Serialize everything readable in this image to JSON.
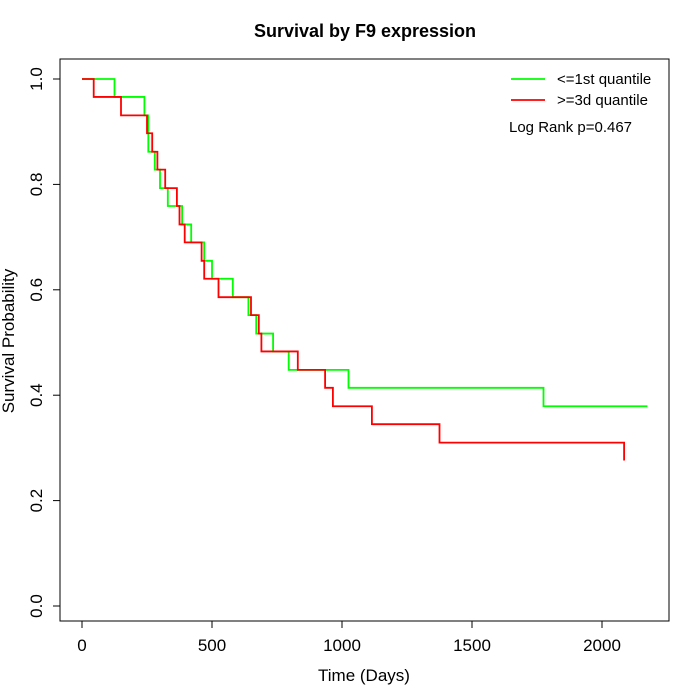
{
  "chart_data": {
    "type": "line",
    "title": "Survival by F9 expression",
    "xlabel": "Time (Days)",
    "ylabel": "Survival Probability",
    "xlim": [
      0,
      2180
    ],
    "ylim": [
      0,
      1.0
    ],
    "x_ticks": [
      0,
      500,
      1000,
      1500,
      2000
    ],
    "y_ticks": [
      0.0,
      0.2,
      0.4,
      0.6,
      0.8,
      1.0
    ],
    "x_tick_labels": [
      "0",
      "500",
      "1000",
      "1500",
      "2000"
    ],
    "y_tick_labels": [
      "0.0",
      "0.2",
      "0.4",
      "0.6",
      "0.8",
      "1.0"
    ],
    "grid": false,
    "legend_position": "top-right",
    "annotation": "Log Rank p=0.467",
    "series": [
      {
        "name": "<=1st quantile",
        "color": "#00ff00",
        "step": true,
        "x": [
          0,
          125,
          240,
          255,
          280,
          300,
          330,
          385,
          420,
          470,
          500,
          580,
          640,
          670,
          735,
          795,
          1025,
          1775,
          2175
        ],
        "y": [
          1.0,
          0.966,
          0.931,
          0.862,
          0.828,
          0.793,
          0.759,
          0.724,
          0.69,
          0.655,
          0.621,
          0.586,
          0.552,
          0.517,
          0.483,
          0.448,
          0.414,
          0.379,
          0.379
        ]
      },
      {
        "name": ">=3d quantile",
        "color": "#ff0000",
        "step": true,
        "x": [
          0,
          45,
          150,
          250,
          270,
          290,
          320,
          365,
          375,
          395,
          460,
          470,
          525,
          650,
          680,
          690,
          830,
          935,
          965,
          1115,
          1375,
          2085
        ],
        "y": [
          1.0,
          0.966,
          0.931,
          0.897,
          0.862,
          0.828,
          0.793,
          0.759,
          0.724,
          0.69,
          0.655,
          0.621,
          0.586,
          0.552,
          0.517,
          0.483,
          0.448,
          0.414,
          0.379,
          0.345,
          0.31,
          0.276
        ]
      }
    ]
  }
}
